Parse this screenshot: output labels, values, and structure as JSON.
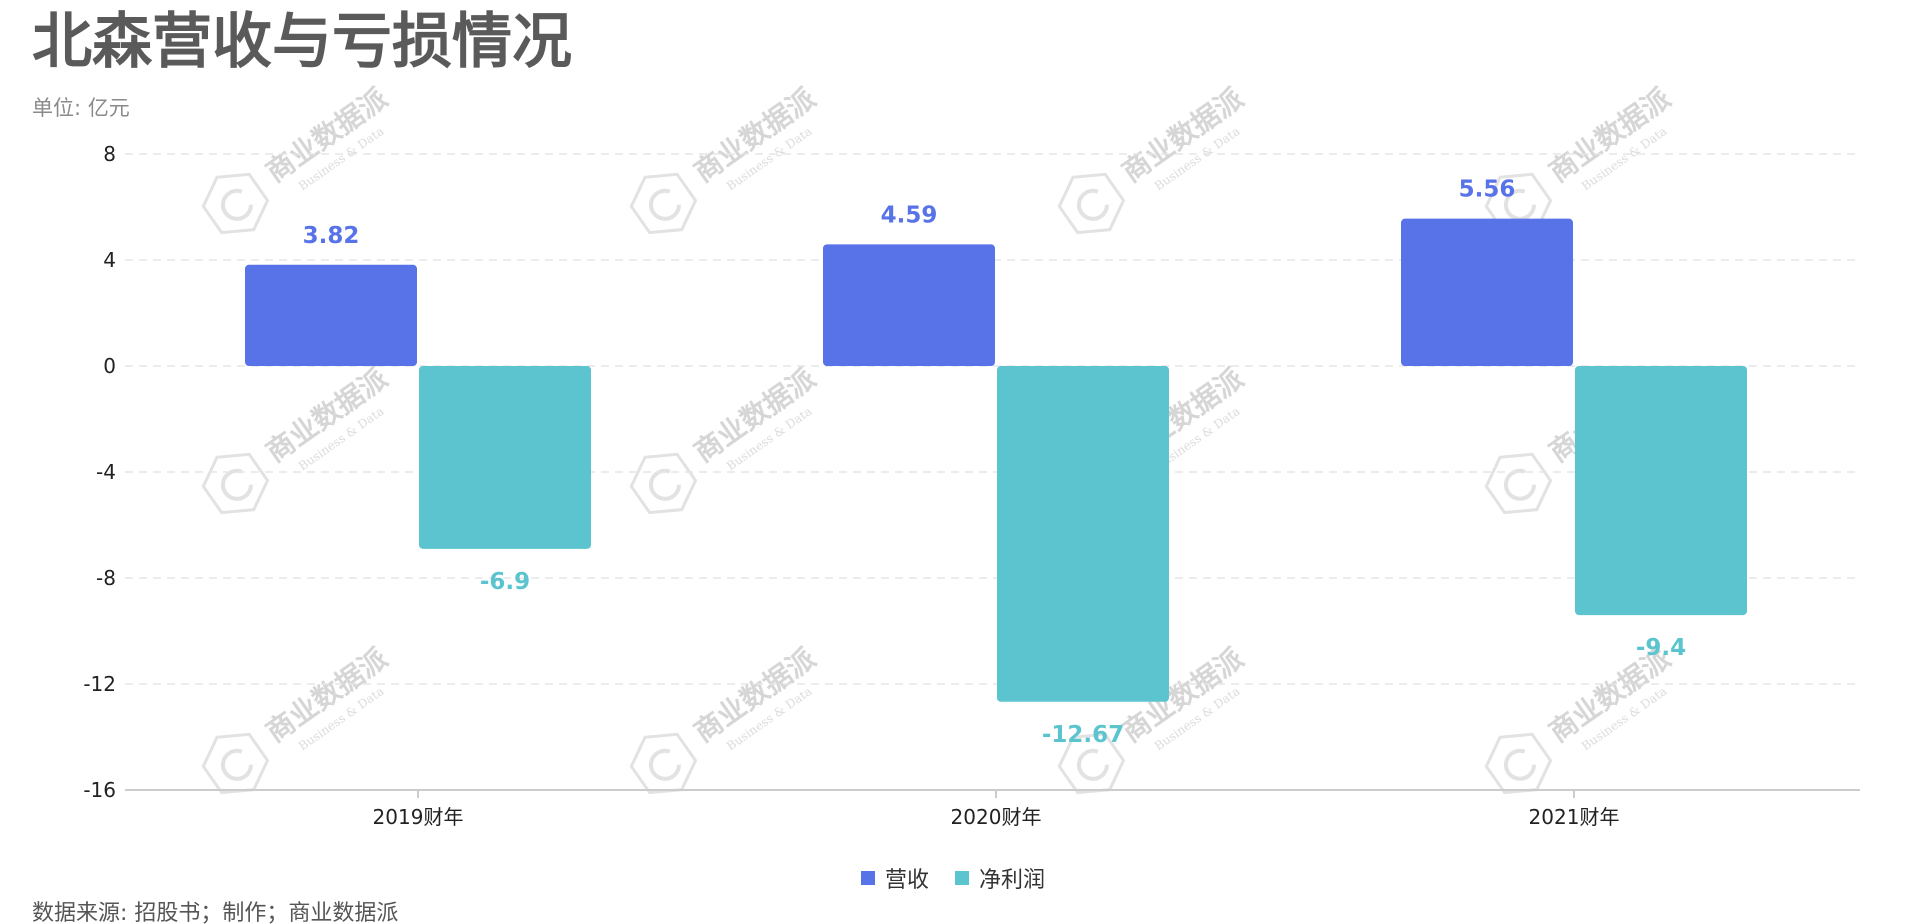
{
  "header": {
    "title": "北森营收与亏损情况",
    "unit": "单位: 亿元"
  },
  "footer": {
    "source": "数据来源: 招股书；制作；商业数据派"
  },
  "watermark": {
    "text": "商业数据派",
    "subtext": "Business & Data"
  },
  "colors": {
    "revenue": "#5872E8",
    "profit": "#5BC4CE",
    "grid": "#e6e6e6",
    "axis": "#cccccc"
  },
  "chart_data": {
    "type": "bar",
    "title": "北森营收与亏损情况",
    "subtitle": "单位: 亿元",
    "categories": [
      "2019财年",
      "2020财年",
      "2021财年"
    ],
    "series": [
      {
        "name": "营收",
        "values": [
          3.82,
          4.59,
          5.56
        ]
      },
      {
        "name": "净利润",
        "values": [
          -6.9,
          -12.67,
          -9.4
        ]
      }
    ],
    "ylim": [
      -16,
      8
    ],
    "yticks": [
      8,
      4,
      0,
      -4,
      -8,
      -12,
      -16
    ],
    "grid": true,
    "legend": "bottom-center"
  }
}
